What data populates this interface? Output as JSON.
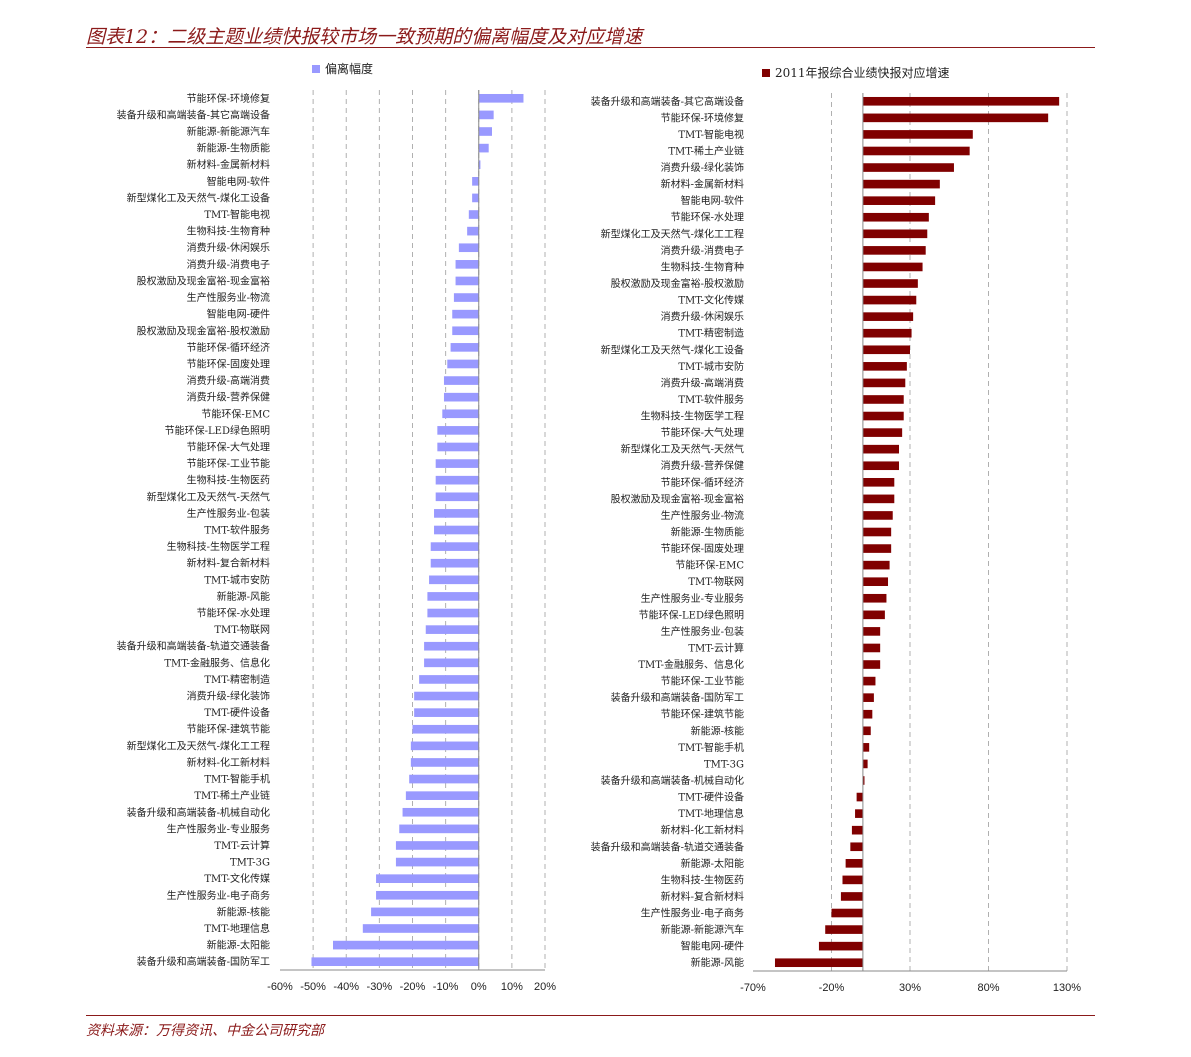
{
  "title": "图表12：二级主题业绩快报较市场一致预期的偏离幅度及对应增速",
  "source": "资料来源：万得资讯、中金公司研究部",
  "colors": {
    "left_bar": "#9999ff",
    "right_bar": "#800000",
    "grid": "#b0b0b0",
    "accent": "#8b1a1a"
  },
  "chart_data": [
    {
      "type": "bar",
      "orientation": "horizontal",
      "legend": "偏离幅度",
      "legend_position": "top-left",
      "grid": "vertical dashed",
      "xlim": [
        -0.6,
        0.2
      ],
      "xticks": [
        "-60%",
        "-50%",
        "-40%",
        "-30%",
        "-20%",
        "-10%",
        "0%",
        "10%",
        "20%"
      ],
      "categories": [
        "节能环保-环境修复",
        "装备升级和高端装备-其它高端设备",
        "新能源-新能源汽车",
        "新能源-生物质能",
        "新材料-金属新材料",
        "智能电网-软件",
        "新型煤化工及天然气-煤化工设备",
        "TMT-智能电视",
        "生物科技-生物育种",
        "消费升级-休闲娱乐",
        "消费升级-消费电子",
        "股权激励及现金富裕-现金富裕",
        "生产性服务业-物流",
        "智能电网-硬件",
        "股权激励及现金富裕-股权激励",
        "节能环保-循环经济",
        "节能环保-固废处理",
        "消费升级-高端消费",
        "消费升级-营养保健",
        "节能环保-EMC",
        "节能环保-LED绿色照明",
        "节能环保-大气处理",
        "节能环保-工业节能",
        "生物科技-生物医药",
        "新型煤化工及天然气-天然气",
        "生产性服务业-包装",
        "TMT-软件服务",
        "生物科技-生物医学工程",
        "新材料-复合新材料",
        "TMT-城市安防",
        "新能源-风能",
        "节能环保-水处理",
        "TMT-物联网",
        "装备升级和高端装备-轨道交通装备",
        "TMT-金融服务、信息化",
        "TMT-精密制造",
        "消费升级-绿化装饰",
        "TMT-硬件设备",
        "节能环保-建筑节能",
        "新型煤化工及天然气-煤化工工程",
        "新材料-化工新材料",
        "TMT-智能手机",
        "TMT-稀土产业链",
        "装备升级和高端装备-机械自动化",
        "生产性服务业-专业服务",
        "TMT-云计算",
        "TMT-3G",
        "TMT-文化传媒",
        "生产性服务业-电子商务",
        "新能源-核能",
        "TMT-地理信息",
        "新能源-太阳能",
        "装备升级和高端装备-国防军工"
      ],
      "values": [
        0.135,
        0.045,
        0.04,
        0.03,
        0.005,
        -0.02,
        -0.02,
        -0.03,
        -0.035,
        -0.06,
        -0.07,
        -0.07,
        -0.075,
        -0.08,
        -0.08,
        -0.085,
        -0.095,
        -0.105,
        -0.105,
        -0.11,
        -0.125,
        -0.125,
        -0.13,
        -0.13,
        -0.13,
        -0.135,
        -0.135,
        -0.145,
        -0.145,
        -0.15,
        -0.155,
        -0.155,
        -0.16,
        -0.165,
        -0.165,
        -0.18,
        -0.195,
        -0.195,
        -0.2,
        -0.205,
        -0.205,
        -0.21,
        -0.22,
        -0.23,
        -0.24,
        -0.25,
        -0.25,
        -0.31,
        -0.31,
        -0.325,
        -0.35,
        -0.44,
        -0.505
      ]
    },
    {
      "type": "bar",
      "orientation": "horizontal",
      "legend": "2011年报综合业绩快报对应增速",
      "legend_position": "top-left",
      "grid": "vertical dashed",
      "xlim": [
        -0.7,
        1.3
      ],
      "xticks": [
        "-70%",
        "-20%",
        "30%",
        "80%",
        "130%"
      ],
      "categories": [
        "装备升级和高端装备-其它高端设备",
        "节能环保-环境修复",
        "TMT-智能电视",
        "TMT-稀土产业链",
        "消费升级-绿化装饰",
        "新材料-金属新材料",
        "智能电网-软件",
        "节能环保-水处理",
        "新型煤化工及天然气-煤化工工程",
        "消费升级-消费电子",
        "生物科技-生物育种",
        "股权激励及现金富裕-股权激励",
        "TMT-文化传媒",
        "消费升级-休闲娱乐",
        "TMT-精密制造",
        "新型煤化工及天然气-煤化工设备",
        "TMT-城市安防",
        "消费升级-高端消费",
        "TMT-软件服务",
        "生物科技-生物医学工程",
        "节能环保-大气处理",
        "新型煤化工及天然气-天然气",
        "消费升级-营养保健",
        "节能环保-循环经济",
        "股权激励及现金富裕-现金富裕",
        "生产性服务业-物流",
        "新能源-生物质能",
        "节能环保-固废处理",
        "节能环保-EMC",
        "TMT-物联网",
        "生产性服务业-专业服务",
        "节能环保-LED绿色照明",
        "生产性服务业-包装",
        "TMT-云计算",
        "TMT-金融服务、信息化",
        "节能环保-工业节能",
        "装备升级和高端装备-国防军工",
        "节能环保-建筑节能",
        "新能源-核能",
        "TMT-智能手机",
        "TMT-3G",
        "装备升级和高端装备-机械自动化",
        "TMT-硬件设备",
        "TMT-地理信息",
        "新材料-化工新材料",
        "装备升级和高端装备-轨道交通装备",
        "新能源-太阳能",
        "生物科技-生物医药",
        "新材料-复合新材料",
        "生产性服务业-电子商务",
        "新能源-新能源汽车",
        "智能电网-硬件",
        "新能源-风能"
      ],
      "values": [
        1.25,
        1.18,
        0.7,
        0.68,
        0.58,
        0.49,
        0.46,
        0.42,
        0.41,
        0.4,
        0.38,
        0.35,
        0.34,
        0.32,
        0.31,
        0.3,
        0.28,
        0.27,
        0.26,
        0.26,
        0.25,
        0.23,
        0.23,
        0.2,
        0.2,
        0.19,
        0.18,
        0.18,
        0.17,
        0.16,
        0.15,
        0.14,
        0.11,
        0.11,
        0.11,
        0.08,
        0.07,
        0.06,
        0.05,
        0.04,
        0.03,
        0.01,
        -0.04,
        -0.05,
        -0.07,
        -0.08,
        -0.11,
        -0.13,
        -0.14,
        -0.2,
        -0.24,
        -0.28,
        -0.56
      ]
    }
  ]
}
